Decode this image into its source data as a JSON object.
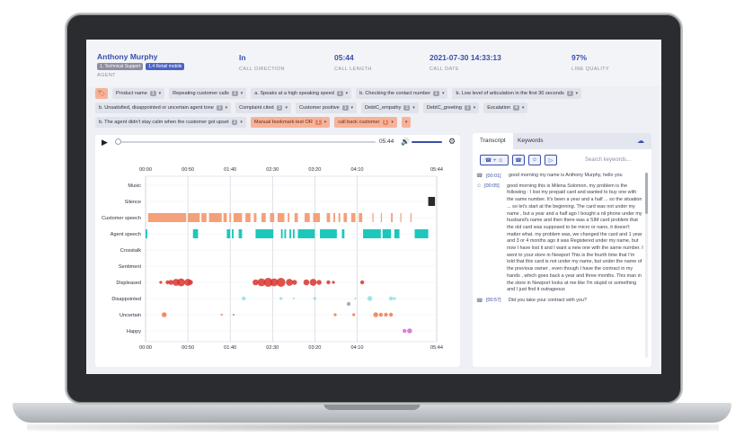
{
  "agent": {
    "name": "Anthony Murphy",
    "tag_support": "1. Technical Support",
    "tag_retail": "1.4 Retail mobile",
    "label": "AGENT"
  },
  "call": {
    "direction": "In",
    "direction_label": "CALL DIRECTION",
    "length": "05:44",
    "length_label": "CALL LENGTH",
    "date": "2021-07-30 14:33:13",
    "date_label": "CALL DATE",
    "quality": "97%",
    "quality_label": "LINE QUALITY"
  },
  "chip_rows": [
    [
      {
        "label": "Product name",
        "count": "1",
        "style": "grey"
      },
      {
        "label": "Repeating customer calls",
        "count": "1",
        "style": "grey"
      },
      {
        "label": "a. Speaks at a high speaking speed",
        "count": "1",
        "style": "grey"
      },
      {
        "label": "b. Checking the contact number",
        "count": "1",
        "style": "grey"
      },
      {
        "label": "b. Low level of articulation in the first 30 seconds",
        "count": "1",
        "style": "grey"
      }
    ],
    [
      {
        "label": "b. Unsatisfied, disappointed or uncertain agent tone",
        "count": "1",
        "style": "grey"
      },
      {
        "label": "Complaint cited",
        "count": "1",
        "style": "grey"
      },
      {
        "label": "Customer positive",
        "count": "1",
        "style": "grey"
      },
      {
        "label": "DebtC_empathy",
        "count": "1",
        "style": "grey"
      },
      {
        "label": "DebtC_greeting",
        "count": "1",
        "style": "grey"
      },
      {
        "label": "Escalation",
        "count": "4",
        "style": "grey"
      }
    ],
    [
      {
        "label": "b. The agent didn't stay calm when the customer got upset",
        "count": "1",
        "style": "grey"
      },
      {
        "label": "Manual bookmark test OR",
        "count": "1",
        "style": "orange"
      },
      {
        "label": "call back customer",
        "count": "1",
        "style": "orange"
      },
      {
        "label": "",
        "count": "",
        "style": "orange"
      }
    ]
  ],
  "player": {
    "time": "05:44"
  },
  "chart_data": {
    "type": "scatter",
    "x_ticks": [
      "00:00",
      "00:50",
      "01:40",
      "02:30",
      "03:20",
      "04:10",
      "05:44"
    ],
    "x_tick_seconds": [
      0,
      50,
      100,
      150,
      200,
      250,
      344
    ],
    "x_max_seconds": 344,
    "rows": [
      "Music",
      "Silence",
      "Customer speech",
      "Agent speech",
      "Crosstalk",
      "Sentiment",
      "Displeased",
      "Disappointed",
      "Uncertain",
      "Happy"
    ],
    "colors": {
      "customer": "#f4a07a",
      "agent": "#1dc7bb",
      "silence": "#2a2a2a",
      "displeased": "#d9342c",
      "disappointed": "#8ee0e6",
      "uncertain": "#f07a4a",
      "happy": "#d966d6",
      "grey": "#9aa0a6"
    },
    "segments": {
      "Silence": [
        [
          334,
          342
        ]
      ],
      "Customer speech": [
        [
          3,
          48
        ],
        [
          50,
          64
        ],
        [
          66,
          72
        ],
        [
          75,
          90
        ],
        [
          92,
          96
        ],
        [
          99,
          101
        ],
        [
          104,
          114
        ],
        [
          118,
          124
        ],
        [
          128,
          131
        ],
        [
          137,
          142
        ],
        [
          147,
          152
        ],
        [
          156,
          164
        ],
        [
          168,
          170
        ],
        [
          176,
          180
        ],
        [
          188,
          194
        ],
        [
          198,
          206
        ],
        [
          214,
          218
        ],
        [
          222,
          224
        ],
        [
          228,
          230
        ],
        [
          234,
          238
        ],
        [
          243,
          248
        ],
        [
          252,
          256
        ],
        [
          268,
          269
        ],
        [
          278,
          279
        ],
        [
          290,
          292
        ],
        [
          301,
          302
        ],
        [
          313,
          314
        ]
      ],
      "Agent speech": [
        [
          0,
          2
        ],
        [
          56,
          62
        ],
        [
          96,
          100
        ],
        [
          102,
          104
        ],
        [
          110,
          114
        ],
        [
          130,
          151
        ],
        [
          160,
          162
        ],
        [
          164,
          166
        ],
        [
          170,
          172
        ],
        [
          174,
          176
        ],
        [
          180,
          200
        ],
        [
          206,
          226
        ],
        [
          232,
          235
        ],
        [
          257,
          278
        ],
        [
          280,
          290
        ],
        [
          294,
          300
        ],
        [
          318,
          334
        ]
      ]
    },
    "events": {
      "Displeased": [
        [
          18,
          3
        ],
        [
          26,
          4
        ],
        [
          30,
          5
        ],
        [
          36,
          7
        ],
        [
          42,
          8
        ],
        [
          50,
          7
        ],
        [
          53,
          5
        ],
        [
          130,
          6
        ],
        [
          137,
          8
        ],
        [
          145,
          9
        ],
        [
          152,
          8
        ],
        [
          160,
          9
        ],
        [
          170,
          7
        ],
        [
          176,
          5
        ],
        [
          190,
          6
        ],
        [
          198,
          7
        ],
        [
          205,
          5
        ],
        [
          216,
          4
        ],
        [
          222,
          3
        ],
        [
          256,
          4
        ]
      ],
      "Disappointed": [
        [
          116,
          4
        ],
        [
          160,
          3
        ],
        [
          175,
          2
        ],
        [
          200,
          3
        ],
        [
          248,
          2
        ],
        [
          265,
          5
        ],
        [
          290,
          4
        ],
        [
          294,
          3
        ]
      ],
      "Uncertain": [
        [
          22,
          5
        ],
        [
          90,
          2
        ],
        [
          104,
          2
        ],
        [
          224,
          3
        ],
        [
          246,
          3
        ],
        [
          272,
          5
        ],
        [
          278,
          4
        ],
        [
          284,
          4
        ],
        [
          290,
          4
        ]
      ],
      "Happy": [
        [
          306,
          4
        ],
        [
          312,
          5
        ]
      ],
      "grey": [
        [
          240,
          4
        ]
      ]
    }
  },
  "transcript": {
    "tab_transcript": "Transcript",
    "tab_keywords": "Keywords",
    "search_placeholder": "Search keywords...",
    "lines": [
      {
        "speaker": "agent",
        "time": "[00:01]",
        "text": "good morning my name is Anthony Murphy, hello you"
      },
      {
        "speaker": "customer",
        "time": "[00:05]",
        "text": "good morning this is Milena Solomon, my problem is the following : I lost my prepaid card and wanted to buy one with the same number. It's been a year and a half ... so the situation ... so let's start at the beginning. The card was not under my name , but a year and a half ago I bought a nil phone under my husband's name and then there was a SIM card problem that the old card was supposed to be micro or nano, it doesn't matter what. my problem was, we changed the card and 1 year and 3 or 4 months ago it was Registered under my name, but now I have lost it and I want a new one with the same number. I went to your store in Newport This is the fourth time that I'm told that this card is not under my name, but under the name of the previous owner , even though I have the contract in my hands , which goes back a year and three months. This man in the store in Newport looks at me like I'm stupid or something and I just find it outrageous"
      },
      {
        "speaker": "agent",
        "time": "[00:57]",
        "text": "Did you take your contract with you?"
      }
    ]
  }
}
